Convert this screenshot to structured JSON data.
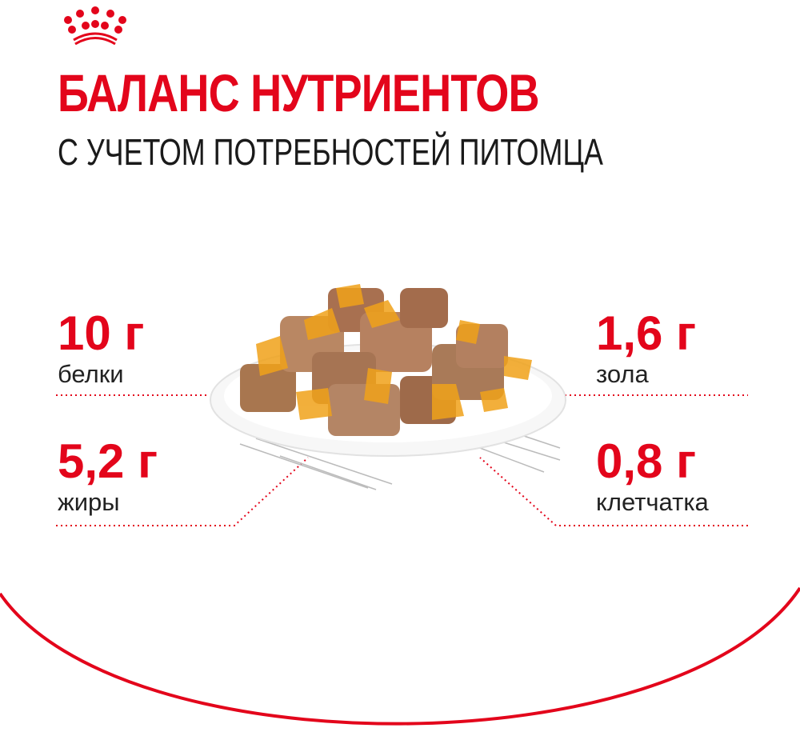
{
  "brand": {
    "logo": "royal-crown-logo",
    "accent": "#e3051b"
  },
  "header": {
    "title": "БАЛАНС НУТРИЕНТОВ",
    "subtitle": "С УЧЕТОМ ПОТРЕБНОСТЕЙ ПИТОМЦА"
  },
  "nutrients": [
    {
      "value": "10 г",
      "label": "белки"
    },
    {
      "value": "5,2 г",
      "label": "жиры"
    },
    {
      "value": "1,6 г",
      "label": "зола"
    },
    {
      "value": "0,8 г",
      "label": "клетчатка"
    }
  ]
}
